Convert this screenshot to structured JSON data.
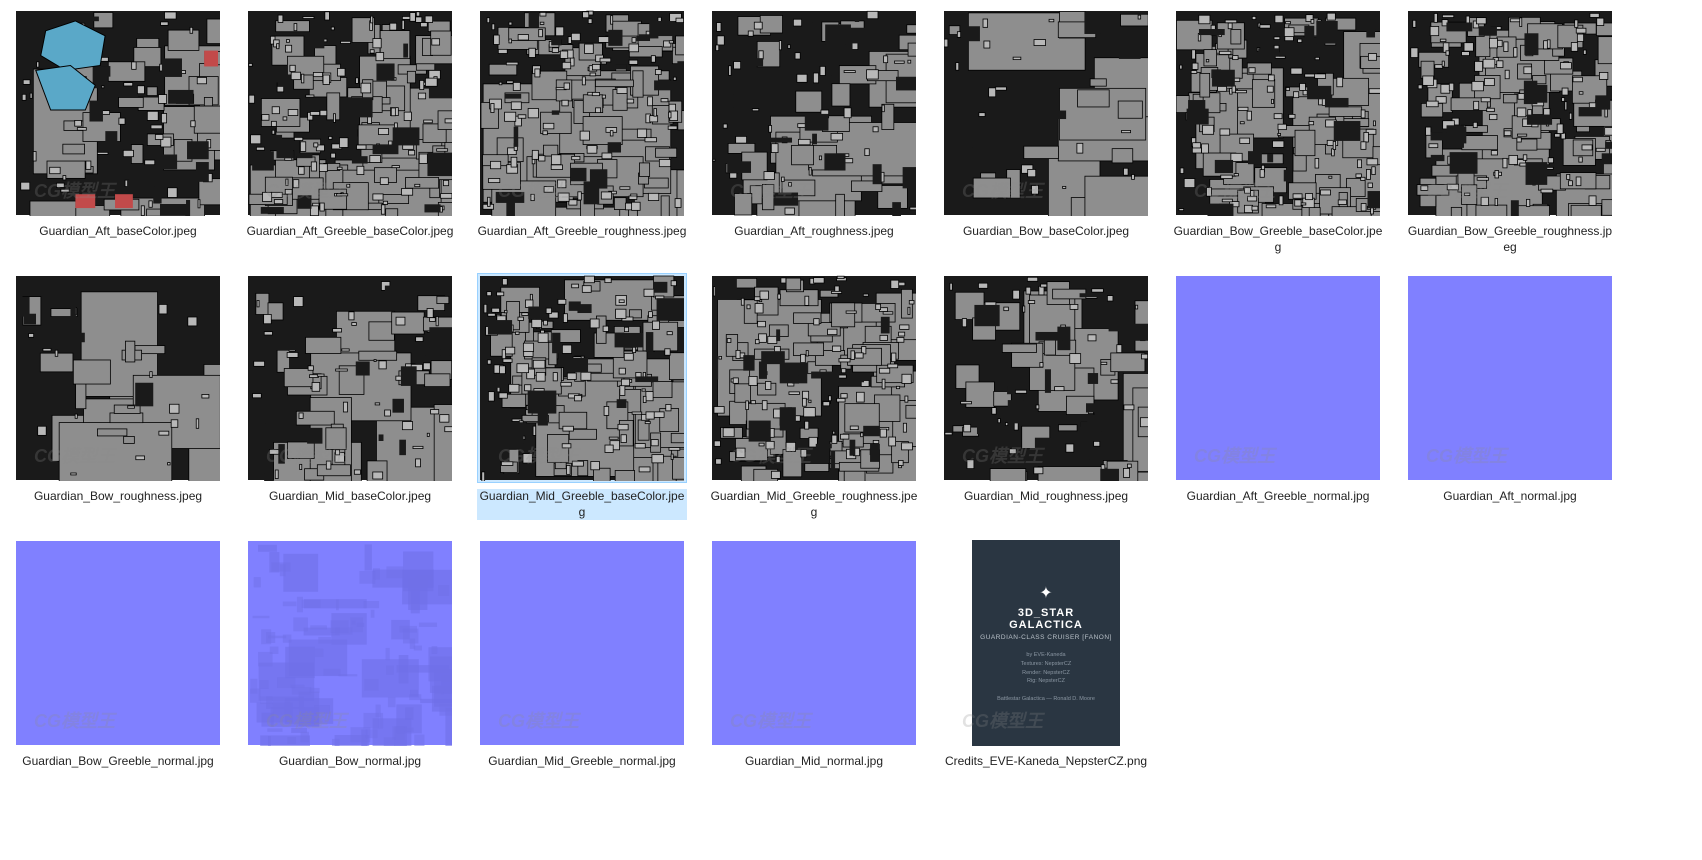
{
  "view": {
    "background": "#ffffff",
    "columns": 7,
    "thumb_size": 206,
    "font_family": "Segoe UI",
    "label_fontsize": 12,
    "label_color": "#222222",
    "selection_bg": "#cce8ff",
    "selection_border": "#99d1ff",
    "watermark_text": "CG模型王",
    "watermark_sub": "www.CGMXW.com"
  },
  "items": [
    {
      "filename": "Guardian_Aft_baseColor.jpeg",
      "kind": "uv-gray",
      "accent": true,
      "selected": false
    },
    {
      "filename": "Guardian_Aft_Greeble_baseColor.jpeg",
      "kind": "uv-gray-dense",
      "accent": false,
      "selected": false
    },
    {
      "filename": "Guardian_Aft_Greeble_roughness.jpeg",
      "kind": "uv-gray-dense",
      "accent": false,
      "selected": false
    },
    {
      "filename": "Guardian_Aft_roughness.jpeg",
      "kind": "uv-gray",
      "accent": false,
      "selected": false
    },
    {
      "filename": "Guardian_Bow_baseColor.jpeg",
      "kind": "uv-gray-sparse",
      "accent": false,
      "selected": false
    },
    {
      "filename": "Guardian_Bow_Greeble_baseColor.jpeg",
      "kind": "uv-gray-dense",
      "accent": false,
      "selected": false
    },
    {
      "filename": "Guardian_Bow_Greeble_roughness.jpeg",
      "kind": "uv-gray-dense",
      "accent": false,
      "selected": false
    },
    {
      "filename": "Guardian_Bow_roughness.jpeg",
      "kind": "uv-gray-sparse",
      "accent": false,
      "selected": false
    },
    {
      "filename": "Guardian_Mid_baseColor.jpeg",
      "kind": "uv-gray",
      "accent": false,
      "selected": false
    },
    {
      "filename": "Guardian_Mid_Greeble_baseColor.jpeg",
      "kind": "uv-gray-dense",
      "accent": false,
      "selected": true
    },
    {
      "filename": "Guardian_Mid_Greeble_roughness.jpeg",
      "kind": "uv-gray-dense",
      "accent": false,
      "selected": false
    },
    {
      "filename": "Guardian_Mid_roughness.jpeg",
      "kind": "uv-gray",
      "accent": false,
      "selected": false
    },
    {
      "filename": "Guardian_Aft_Greeble_normal.jpg",
      "kind": "normal-flat",
      "accent": false,
      "selected": false
    },
    {
      "filename": "Guardian_Aft_normal.jpg",
      "kind": "normal-flat",
      "accent": false,
      "selected": false
    },
    {
      "filename": "Guardian_Bow_Greeble_normal.jpg",
      "kind": "normal-flat",
      "accent": false,
      "selected": false
    },
    {
      "filename": "Guardian_Bow_normal.jpg",
      "kind": "normal-detail",
      "accent": false,
      "selected": false
    },
    {
      "filename": "Guardian_Mid_Greeble_normal.jpg",
      "kind": "normal-flat",
      "accent": false,
      "selected": false
    },
    {
      "filename": "Guardian_Mid_normal.jpg",
      "kind": "normal-flat",
      "accent": false,
      "selected": false
    },
    {
      "filename": "Credits_EVE-Kaneda_NepsterCZ.png",
      "kind": "credits",
      "accent": false,
      "selected": false
    }
  ],
  "thumb_styles": {
    "uv_base_fill": "#8e8e8e",
    "uv_dark_fill": "#1a1a1a",
    "uv_light_fill": "#b8b8b8",
    "uv_stroke": "#000000",
    "accent_blue": "#5aa8c8",
    "accent_red": "#c24a4a",
    "normal_color": "#8080ff",
    "normal_shadow": "#6f6fe8",
    "credits_bg": "#2a3642",
    "credits_text": "#d8dde2"
  },
  "credits_card": {
    "logo_label": "✦",
    "title_line1": "3D_STAR",
    "title_line2": "GALACTICA",
    "subtitle": "GUARDIAN-CLASS CRUISER [FANON]",
    "lines": [
      "by EVE-Kaneda",
      "Textures: NepsterCZ",
      "Render: NepsterCZ",
      "Rig: NepsterCZ",
      "",
      "Battlestar Galactica — Ronald D. Moore"
    ]
  }
}
